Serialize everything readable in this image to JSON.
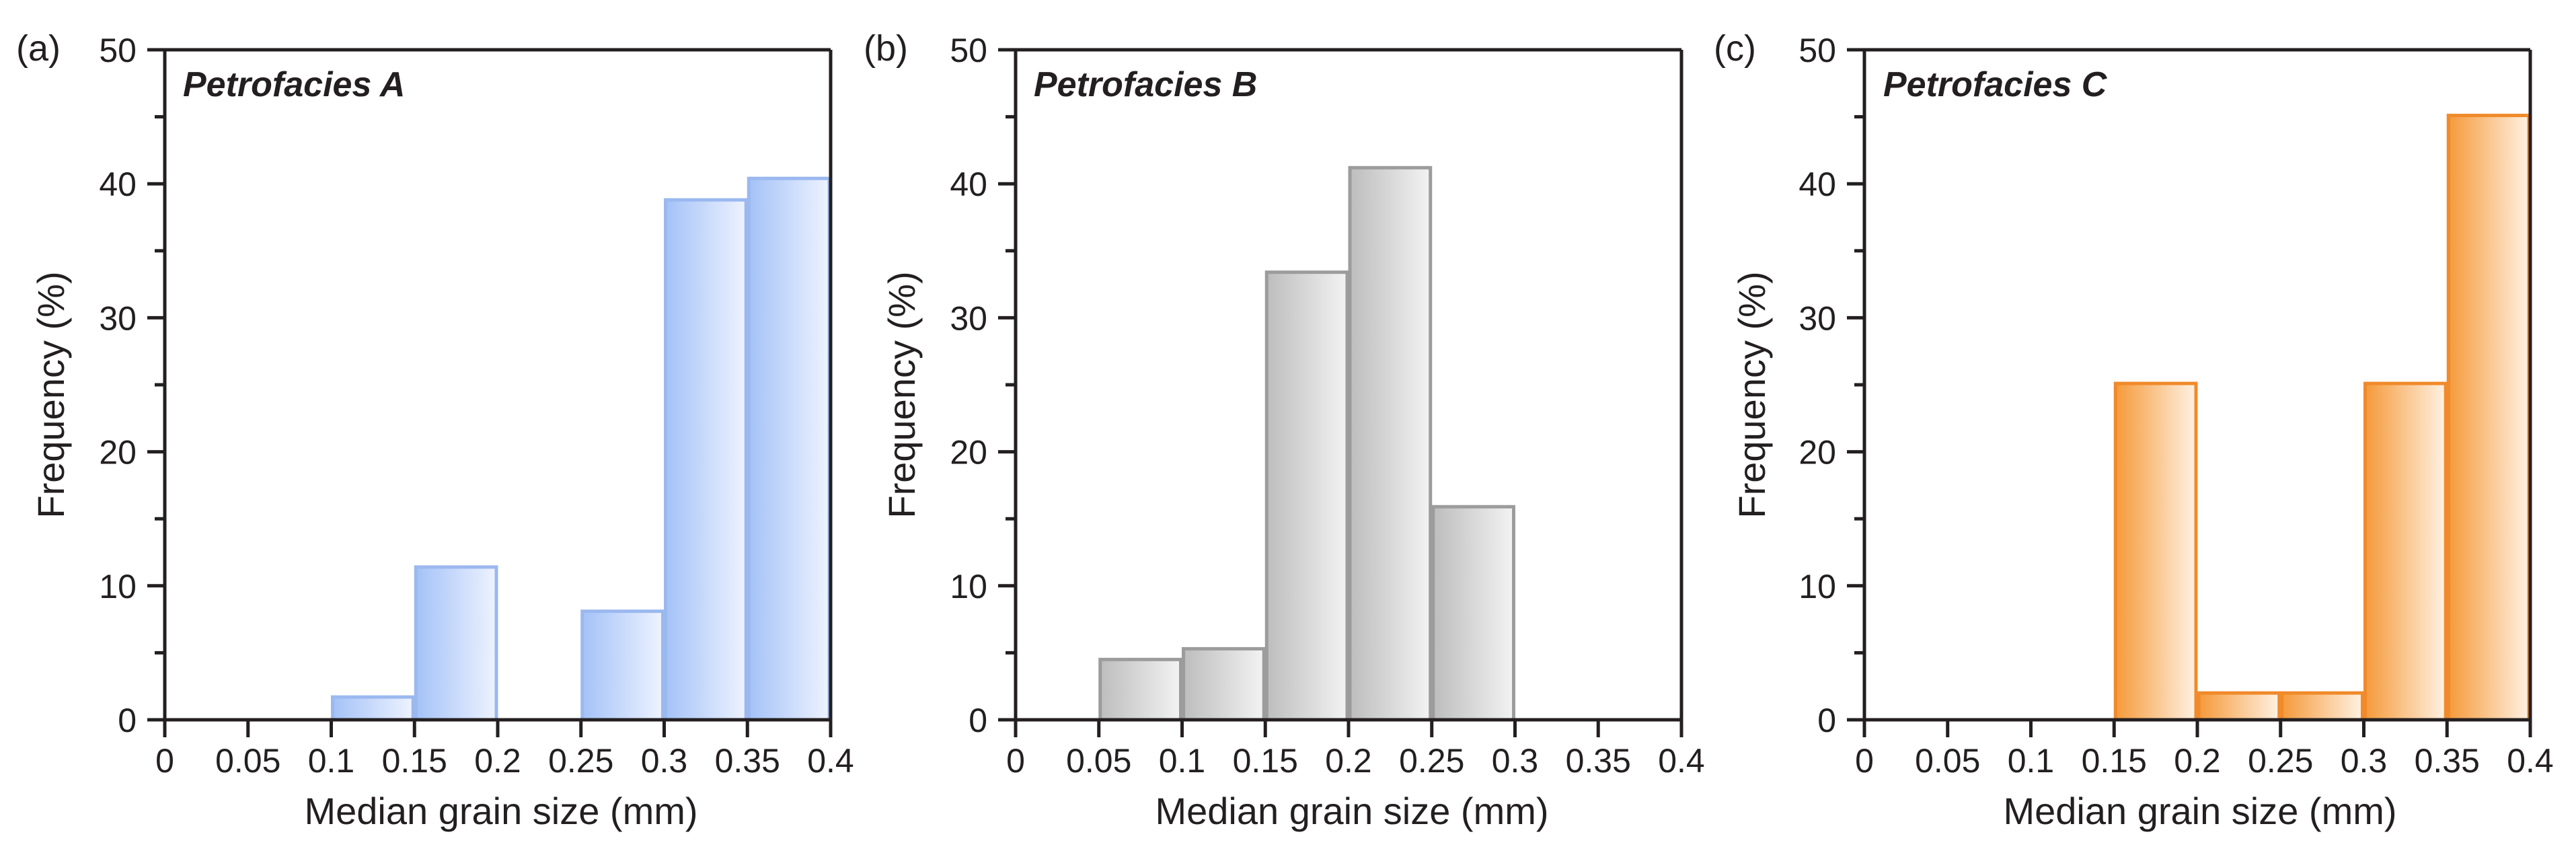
{
  "colors": {
    "axis": "#231f20",
    "panel_a_fill_light": "#eef3ff",
    "panel_a_fill_dark": "#a4c2f7",
    "panel_a_stroke": "#9bb8ef",
    "panel_b_fill_light": "#f3f3f3",
    "panel_b_fill_dark": "#bdbdbd",
    "panel_b_stroke": "#9c9c9c",
    "panel_c_fill_light": "#fff2e3",
    "panel_c_fill_dark": "#f59a3a",
    "panel_c_stroke": "#f08a2a"
  },
  "chart_data": [
    {
      "type": "bar",
      "panel_label": "(a)",
      "title": "Petrofacies A",
      "xlabel": "Median grain size (mm)",
      "ylabel": "Frequency (%)",
      "xlim": [
        0,
        0.4
      ],
      "ylim": [
        0,
        50
      ],
      "xticks": [
        "0",
        "0.05",
        "0.1",
        "0.15",
        "0.2",
        "0.25",
        "0.3",
        "0.35",
        "0.4"
      ],
      "yticks": [
        "0",
        "10",
        "20",
        "30",
        "40",
        "50"
      ],
      "bins": [
        [
          0.1,
          0.15
        ],
        [
          0.15,
          0.2
        ],
        [
          0.25,
          0.3
        ],
        [
          0.3,
          0.35
        ],
        [
          0.35,
          0.4
        ]
      ],
      "values": [
        1.7,
        11.4,
        8.1,
        38.8,
        40.4
      ]
    },
    {
      "type": "bar",
      "panel_label": "(b)",
      "title": "Petrofacies B",
      "xlabel": "Median grain size (mm)",
      "ylabel": "Frequency (%)",
      "xlim": [
        0,
        0.4
      ],
      "ylim": [
        0,
        50
      ],
      "xticks": [
        "0",
        "0.05",
        "0.1",
        "0.15",
        "0.2",
        "0.25",
        "0.3",
        "0.35",
        "0.4"
      ],
      "yticks": [
        "0",
        "10",
        "20",
        "30",
        "40",
        "50"
      ],
      "bins": [
        [
          0.05,
          0.1
        ],
        [
          0.1,
          0.15
        ],
        [
          0.15,
          0.2
        ],
        [
          0.2,
          0.25
        ],
        [
          0.25,
          0.3
        ]
      ],
      "values": [
        4.5,
        5.3,
        33.4,
        41.2,
        15.9
      ]
    },
    {
      "type": "bar",
      "panel_label": "(c)",
      "title": "Petrofacies C",
      "xlabel": "Median grain size (mm)",
      "ylabel": "Frequency (%)",
      "xlim": [
        0,
        0.4
      ],
      "ylim": [
        0,
        50
      ],
      "xticks": [
        "0",
        "0.05",
        "0.1",
        "0.15",
        "0.2",
        "0.25",
        "0.3",
        "0.35",
        "0.4"
      ],
      "yticks": [
        "0",
        "10",
        "20",
        "30",
        "40",
        "50"
      ],
      "bins": [
        [
          0.15,
          0.2
        ],
        [
          0.2,
          0.25
        ],
        [
          0.25,
          0.3
        ],
        [
          0.3,
          0.35
        ],
        [
          0.35,
          0.4
        ]
      ],
      "values": [
        25.1,
        2.0,
        2.0,
        25.1,
        45.1
      ]
    }
  ]
}
